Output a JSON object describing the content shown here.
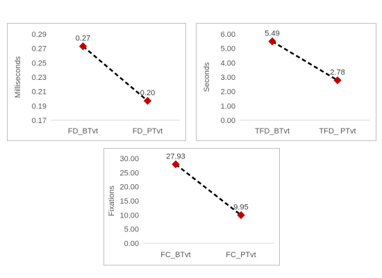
{
  "chart_data": [
    {
      "type": "line",
      "ylabel": "Milliseconds",
      "categories": [
        "FD_BTvt",
        "FD_PTvt"
      ],
      "values": [
        0.273,
        0.197
      ],
      "data_labels": [
        "0.27",
        "0.20"
      ],
      "ylim": [
        0.17,
        0.29
      ],
      "y_ticks": [
        "0.17",
        "0.19",
        "0.21",
        "0.23",
        "0.25",
        "0.27",
        "0.29"
      ],
      "line_style": "dashed",
      "line_color": "#000000",
      "marker": "diamond",
      "marker_color": "#c00000",
      "grid": false
    },
    {
      "type": "line",
      "ylabel": "Seconds",
      "categories": [
        "TFD_BTvt",
        "TFD_ PTvt"
      ],
      "values": [
        5.49,
        2.78
      ],
      "data_labels": [
        "5.49",
        "2.78"
      ],
      "ylim": [
        0,
        6
      ],
      "y_ticks": [
        "0.00",
        "1.00",
        "2.00",
        "3.00",
        "4.00",
        "5.00",
        "6.00"
      ],
      "line_style": "dashed",
      "line_color": "#000000",
      "marker": "diamond",
      "marker_color": "#c00000",
      "grid": false
    },
    {
      "type": "line",
      "ylabel": "Fixations",
      "categories": [
        "FC_BTvt",
        "FC_PTvt"
      ],
      "values": [
        27.93,
        9.95
      ],
      "data_labels": [
        "27.93",
        "9.95"
      ],
      "ylim": [
        0,
        30
      ],
      "y_ticks": [
        "0.00",
        "5.00",
        "10.00",
        "15.00",
        "20.00",
        "25.00",
        "30.00"
      ],
      "line_style": "dashed",
      "line_color": "#000000",
      "marker": "diamond",
      "marker_color": "#c00000",
      "grid": false
    }
  ]
}
